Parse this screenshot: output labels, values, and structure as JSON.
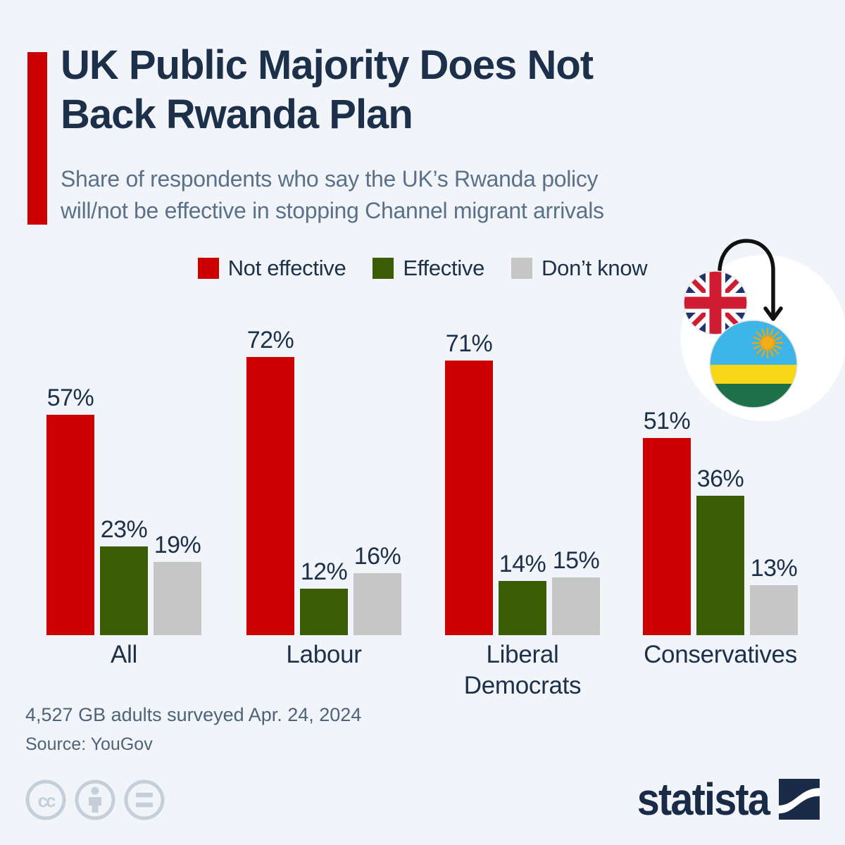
{
  "header": {
    "title_line1": "UK Public Majority Does Not",
    "title_line2": "Back Rwanda Plan",
    "subtitle_line1": "Share of respondents who say the UK’s Rwanda policy",
    "subtitle_line2": "will/not be effective in stopping Channel migrant arrivals"
  },
  "colors": {
    "background": "#f1f4f9",
    "accent_red": "#cc0001",
    "not_effective": "#cc0001",
    "effective": "#3b5d05",
    "dont_know": "#c6c6c6",
    "title_navy": "#1d3049",
    "subtitle_gray": "#5b7089",
    "footer_gray": "#4e6378",
    "license_icon_gray": "#c5cfda",
    "brand_navy": "#1a2b47"
  },
  "legend": [
    {
      "label": "Not effective",
      "color": "#cc0001"
    },
    {
      "label": "Effective",
      "color": "#3b5d05"
    },
    {
      "label": "Don’t know",
      "color": "#c6c6c6"
    }
  ],
  "chart_data": {
    "type": "bar",
    "categories": [
      "All",
      "Labour",
      "Liberal Democrats",
      "Conservatives"
    ],
    "series": [
      {
        "name": "Not effective",
        "color": "#cc0001",
        "values": [
          57,
          72,
          71,
          51
        ]
      },
      {
        "name": "Effective",
        "color": "#3b5d05",
        "values": [
          23,
          12,
          14,
          36
        ]
      },
      {
        "name": "Don’t know",
        "color": "#c6c6c6",
        "values": [
          19,
          16,
          15,
          13
        ]
      }
    ],
    "unit": "%",
    "value_labels": true,
    "ylim": [
      0,
      80
    ],
    "grid": false,
    "legend_position": "top",
    "title": "UK Public Majority Does Not Back Rwanda Plan"
  },
  "illustration": {
    "uk_flag": {
      "navy": "#21336b",
      "red": "#cf1c32",
      "white": "#ffffff"
    },
    "rwanda_flag": {
      "blue": "#3eb5e7",
      "yellow": "#f7d618",
      "green": "#1e7048",
      "sun": "#f5ae19"
    },
    "arrow_color": "#111111"
  },
  "footer": {
    "survey_note": "4,527 GB adults surveyed Apr. 24, 2024",
    "source": "Source: YouGov",
    "brand": "statista"
  }
}
